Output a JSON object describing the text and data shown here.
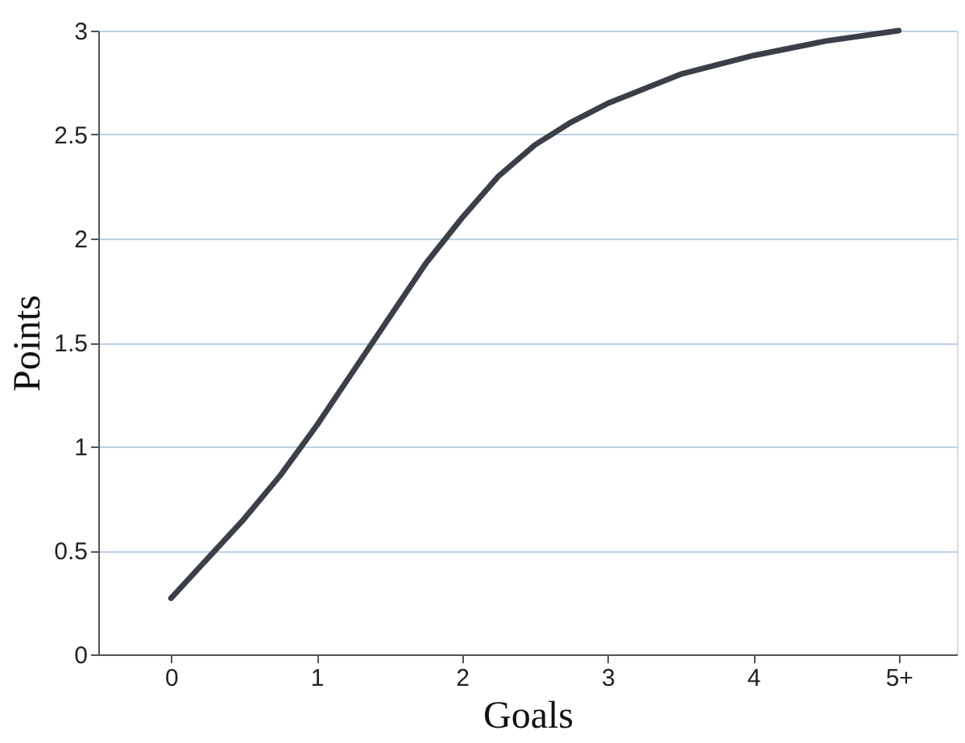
{
  "chart_data": {
    "type": "line",
    "xlabel": "Goals",
    "ylabel": "Points",
    "x": [
      0,
      0.25,
      0.5,
      0.75,
      1,
      1.25,
      1.5,
      1.75,
      2,
      2.25,
      2.5,
      2.75,
      3,
      3.5,
      4,
      4.5,
      5
    ],
    "series": [
      {
        "color": "#3b3f48",
        "values": [
          0.27,
          0.46,
          0.65,
          0.86,
          1.1,
          1.36,
          1.62,
          1.88,
          2.1,
          2.3,
          2.45,
          2.56,
          2.65,
          2.79,
          2.88,
          2.95,
          3.0
        ]
      }
    ],
    "xlim": [
      -0.5,
      5.4
    ],
    "xticks": [
      0,
      1,
      2,
      3,
      4,
      {
        "value": 5,
        "label": "5+"
      }
    ],
    "ylim": [
      0,
      3
    ],
    "yticks": [
      0,
      0.5,
      1,
      1.5,
      2,
      2.5,
      3
    ],
    "grid": "y",
    "marker": "none",
    "line_style": "solid"
  }
}
